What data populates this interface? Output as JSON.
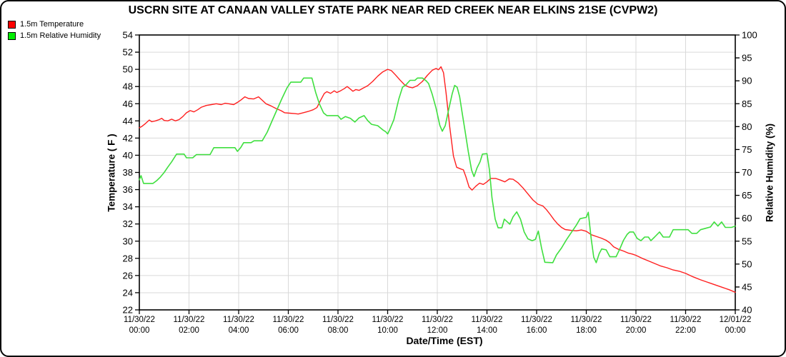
{
  "chart_data": {
    "type": "line",
    "title": "USCRN SITE AT CANAAN VALLEY STATE PARK NEAR RED CREEK NEAR ELKINS 21SE (CVPW2)",
    "xlabel": "Date/Time (EST)",
    "ylabel_left": "Temperature ( F )",
    "ylabel_right": "Relative Humidity (%)",
    "grid": true,
    "legend_position": "top-left",
    "colors": {
      "temperature_line": "#ff1f1f",
      "humidity_line": "#3fdf3f",
      "temperature_swatch": "#ff0000",
      "humidity_swatch": "#00ee00",
      "gridline": "#d9d9d9",
      "axis": "#000000"
    },
    "legend": [
      {
        "label": "1.5m Temperature",
        "color": "#ff0000"
      },
      {
        "label": "1.5m Relative Humidity",
        "color": "#00ee00"
      }
    ],
    "x_range_hours": [
      0,
      24
    ],
    "y_left_axis": {
      "min": 22,
      "max": 54,
      "step": 2
    },
    "y_right_axis": {
      "min": 40,
      "max": 100,
      "step": 5
    },
    "x_ticks": [
      {
        "date": "11/30/22",
        "time": "00:00"
      },
      {
        "date": "11/30/22",
        "time": "02:00"
      },
      {
        "date": "11/30/22",
        "time": "04:00"
      },
      {
        "date": "11/30/22",
        "time": "06:00"
      },
      {
        "date": "11/30/22",
        "time": "08:00"
      },
      {
        "date": "11/30/22",
        "time": "10:00"
      },
      {
        "date": "11/30/22",
        "time": "12:00"
      },
      {
        "date": "11/30/22",
        "time": "14:00"
      },
      {
        "date": "11/30/22",
        "time": "16:00"
      },
      {
        "date": "11/30/22",
        "time": "18:00"
      },
      {
        "date": "11/30/22",
        "time": "20:00"
      },
      {
        "date": "11/30/22",
        "time": "22:00"
      },
      {
        "date": "12/01/22",
        "time": "00:00"
      }
    ],
    "series": [
      {
        "name": "1.5m Temperature",
        "axis": "left",
        "units": "F",
        "points": [
          [
            0,
            43.2
          ],
          [
            0.1,
            43.35
          ],
          [
            0.25,
            43.7
          ],
          [
            0.4,
            44.1
          ],
          [
            0.5,
            43.9
          ],
          [
            0.65,
            44.0
          ],
          [
            0.8,
            44.15
          ],
          [
            0.9,
            44.3
          ],
          [
            1.0,
            44.05
          ],
          [
            1.15,
            44.0
          ],
          [
            1.3,
            44.2
          ],
          [
            1.45,
            44.0
          ],
          [
            1.6,
            44.15
          ],
          [
            1.75,
            44.5
          ],
          [
            1.9,
            44.95
          ],
          [
            2.05,
            45.2
          ],
          [
            2.2,
            45.05
          ],
          [
            2.35,
            45.3
          ],
          [
            2.5,
            45.6
          ],
          [
            2.7,
            45.8
          ],
          [
            2.9,
            45.9
          ],
          [
            3.1,
            46.0
          ],
          [
            3.3,
            45.9
          ],
          [
            3.45,
            46.05
          ],
          [
            3.6,
            46.0
          ],
          [
            3.8,
            45.9
          ],
          [
            3.95,
            46.15
          ],
          [
            4.1,
            46.45
          ],
          [
            4.25,
            46.8
          ],
          [
            4.4,
            46.6
          ],
          [
            4.6,
            46.55
          ],
          [
            4.8,
            46.8
          ],
          [
            4.95,
            46.4
          ],
          [
            5.1,
            46.0
          ],
          [
            5.3,
            45.75
          ],
          [
            5.5,
            45.45
          ],
          [
            5.7,
            45.2
          ],
          [
            5.85,
            44.95
          ],
          [
            6.05,
            44.9
          ],
          [
            6.25,
            44.85
          ],
          [
            6.4,
            44.8
          ],
          [
            6.6,
            44.95
          ],
          [
            6.8,
            45.1
          ],
          [
            7.0,
            45.3
          ],
          [
            7.15,
            45.55
          ],
          [
            7.3,
            46.4
          ],
          [
            7.45,
            47.2
          ],
          [
            7.55,
            47.4
          ],
          [
            7.7,
            47.2
          ],
          [
            7.85,
            47.5
          ],
          [
            7.95,
            47.3
          ],
          [
            8.1,
            47.5
          ],
          [
            8.25,
            47.75
          ],
          [
            8.37,
            48.0
          ],
          [
            8.5,
            47.7
          ],
          [
            8.6,
            47.45
          ],
          [
            8.72,
            47.65
          ],
          [
            8.85,
            47.55
          ],
          [
            9.0,
            47.8
          ],
          [
            9.2,
            48.1
          ],
          [
            9.4,
            48.6
          ],
          [
            9.6,
            49.2
          ],
          [
            9.8,
            49.7
          ],
          [
            10.0,
            50.0
          ],
          [
            10.15,
            49.85
          ],
          [
            10.3,
            49.4
          ],
          [
            10.5,
            48.75
          ],
          [
            10.7,
            48.15
          ],
          [
            10.85,
            47.95
          ],
          [
            11.0,
            47.85
          ],
          [
            11.2,
            48.1
          ],
          [
            11.4,
            48.6
          ],
          [
            11.6,
            49.3
          ],
          [
            11.8,
            49.9
          ],
          [
            11.95,
            50.1
          ],
          [
            12.05,
            49.95
          ],
          [
            12.15,
            50.3
          ],
          [
            12.25,
            49.6
          ],
          [
            12.35,
            47.3
          ],
          [
            12.5,
            43.3
          ],
          [
            12.65,
            39.9
          ],
          [
            12.78,
            38.6
          ],
          [
            12.95,
            38.4
          ],
          [
            13.05,
            38.3
          ],
          [
            13.15,
            37.5
          ],
          [
            13.28,
            36.3
          ],
          [
            13.4,
            35.95
          ],
          [
            13.55,
            36.4
          ],
          [
            13.7,
            36.75
          ],
          [
            13.85,
            36.6
          ],
          [
            14.0,
            36.9
          ],
          [
            14.15,
            37.3
          ],
          [
            14.35,
            37.3
          ],
          [
            14.55,
            37.1
          ],
          [
            14.72,
            36.9
          ],
          [
            14.9,
            37.25
          ],
          [
            15.05,
            37.2
          ],
          [
            15.25,
            36.8
          ],
          [
            15.45,
            36.2
          ],
          [
            15.65,
            35.5
          ],
          [
            15.85,
            34.8
          ],
          [
            16.05,
            34.3
          ],
          [
            16.25,
            34.1
          ],
          [
            16.4,
            33.65
          ],
          [
            16.55,
            33.1
          ],
          [
            16.7,
            32.5
          ],
          [
            16.85,
            32.0
          ],
          [
            17.0,
            31.6
          ],
          [
            17.15,
            31.35
          ],
          [
            17.4,
            31.25
          ],
          [
            17.6,
            31.2
          ],
          [
            17.8,
            31.3
          ],
          [
            18.0,
            31.15
          ],
          [
            18.2,
            30.75
          ],
          [
            18.4,
            30.55
          ],
          [
            18.6,
            30.35
          ],
          [
            18.8,
            30.1
          ],
          [
            18.95,
            29.8
          ],
          [
            19.1,
            29.35
          ],
          [
            19.3,
            29.05
          ],
          [
            19.5,
            28.85
          ],
          [
            19.7,
            28.6
          ],
          [
            19.85,
            28.5
          ],
          [
            20.0,
            28.35
          ],
          [
            20.25,
            28.0
          ],
          [
            20.5,
            27.7
          ],
          [
            20.75,
            27.4
          ],
          [
            21.0,
            27.1
          ],
          [
            21.25,
            26.9
          ],
          [
            21.5,
            26.65
          ],
          [
            21.75,
            26.5
          ],
          [
            22.0,
            26.25
          ],
          [
            22.3,
            25.85
          ],
          [
            22.6,
            25.5
          ],
          [
            22.85,
            25.25
          ],
          [
            23.0,
            25.1
          ],
          [
            23.25,
            24.85
          ],
          [
            23.5,
            24.6
          ],
          [
            23.75,
            24.35
          ],
          [
            24.0,
            24.05
          ]
        ]
      },
      {
        "name": "1.5m Relative Humidity",
        "axis": "right",
        "units": "%",
        "points": [
          [
            0,
            68.4
          ],
          [
            0.07,
            69.3
          ],
          [
            0.17,
            67.6
          ],
          [
            0.55,
            67.6
          ],
          [
            0.7,
            68.2
          ],
          [
            0.85,
            69.0
          ],
          [
            1.0,
            70.0
          ],
          [
            1.15,
            71.2
          ],
          [
            1.3,
            72.3
          ],
          [
            1.5,
            74.0
          ],
          [
            1.8,
            74.0
          ],
          [
            1.9,
            73.2
          ],
          [
            2.15,
            73.2
          ],
          [
            2.3,
            73.9
          ],
          [
            2.85,
            73.9
          ],
          [
            3.0,
            75.4
          ],
          [
            3.85,
            75.4
          ],
          [
            3.95,
            74.6
          ],
          [
            4.08,
            75.4
          ],
          [
            4.2,
            76.5
          ],
          [
            4.5,
            76.5
          ],
          [
            4.62,
            76.9
          ],
          [
            4.95,
            76.9
          ],
          [
            5.15,
            78.8
          ],
          [
            5.35,
            81.3
          ],
          [
            5.55,
            83.8
          ],
          [
            5.75,
            86.2
          ],
          [
            5.95,
            88.5
          ],
          [
            6.1,
            89.7
          ],
          [
            6.5,
            89.7
          ],
          [
            6.62,
            90.6
          ],
          [
            6.95,
            90.6
          ],
          [
            7.1,
            87.5
          ],
          [
            7.25,
            85.0
          ],
          [
            7.42,
            83.0
          ],
          [
            7.55,
            82.4
          ],
          [
            8.0,
            82.4
          ],
          [
            8.12,
            81.6
          ],
          [
            8.3,
            82.2
          ],
          [
            8.5,
            81.8
          ],
          [
            8.68,
            81.0
          ],
          [
            8.85,
            81.9
          ],
          [
            9.05,
            82.4
          ],
          [
            9.2,
            81.3
          ],
          [
            9.35,
            80.5
          ],
          [
            9.6,
            80.2
          ],
          [
            9.8,
            79.3
          ],
          [
            9.92,
            78.9
          ],
          [
            10.0,
            78.4
          ],
          [
            10.08,
            79.3
          ],
          [
            10.25,
            81.5
          ],
          [
            10.45,
            86.0
          ],
          [
            10.6,
            88.6
          ],
          [
            10.75,
            89.2
          ],
          [
            10.9,
            90.1
          ],
          [
            11.1,
            90.1
          ],
          [
            11.2,
            90.6
          ],
          [
            11.4,
            90.6
          ],
          [
            11.55,
            90.0
          ],
          [
            11.65,
            89.4
          ],
          [
            11.8,
            87.0
          ],
          [
            11.95,
            84.0
          ],
          [
            12.1,
            80.3
          ],
          [
            12.2,
            79.0
          ],
          [
            12.32,
            80.2
          ],
          [
            12.45,
            83.5
          ],
          [
            12.6,
            87.2
          ],
          [
            12.7,
            89.0
          ],
          [
            12.8,
            88.6
          ],
          [
            12.9,
            86.5
          ],
          [
            13.0,
            83.0
          ],
          [
            13.12,
            79.0
          ],
          [
            13.25,
            74.5
          ],
          [
            13.38,
            70.5
          ],
          [
            13.48,
            69.1
          ],
          [
            13.6,
            71.0
          ],
          [
            13.72,
            72.3
          ],
          [
            13.82,
            74.0
          ],
          [
            14.0,
            74.1
          ],
          [
            14.1,
            70.5
          ],
          [
            14.2,
            64.5
          ],
          [
            14.33,
            59.8
          ],
          [
            14.45,
            57.9
          ],
          [
            14.6,
            57.9
          ],
          [
            14.7,
            59.8
          ],
          [
            14.82,
            59.2
          ],
          [
            14.92,
            58.7
          ],
          [
            15.05,
            60.3
          ],
          [
            15.2,
            61.4
          ],
          [
            15.35,
            59.8
          ],
          [
            15.5,
            57.0
          ],
          [
            15.65,
            55.5
          ],
          [
            15.82,
            55.1
          ],
          [
            15.95,
            55.4
          ],
          [
            16.07,
            57.2
          ],
          [
            16.2,
            53.5
          ],
          [
            16.33,
            50.4
          ],
          [
            16.65,
            50.3
          ],
          [
            16.8,
            52.0
          ],
          [
            17.0,
            53.5
          ],
          [
            17.2,
            55.3
          ],
          [
            17.4,
            56.9
          ],
          [
            17.6,
            58.5
          ],
          [
            17.75,
            59.9
          ],
          [
            18.0,
            60.2
          ],
          [
            18.08,
            61.3
          ],
          [
            18.2,
            55.5
          ],
          [
            18.3,
            51.5
          ],
          [
            18.4,
            50.3
          ],
          [
            18.52,
            52.3
          ],
          [
            18.62,
            53.3
          ],
          [
            18.8,
            53.1
          ],
          [
            18.95,
            51.6
          ],
          [
            19.2,
            51.6
          ],
          [
            19.35,
            53.3
          ],
          [
            19.5,
            55.2
          ],
          [
            19.65,
            56.5
          ],
          [
            19.75,
            57.0
          ],
          [
            19.9,
            57.0
          ],
          [
            20.05,
            55.6
          ],
          [
            20.2,
            55.1
          ],
          [
            20.35,
            55.9
          ],
          [
            20.5,
            55.9
          ],
          [
            20.6,
            55.1
          ],
          [
            20.75,
            55.9
          ],
          [
            20.95,
            57.0
          ],
          [
            21.1,
            55.9
          ],
          [
            21.35,
            55.9
          ],
          [
            21.5,
            57.5
          ],
          [
            22.1,
            57.5
          ],
          [
            22.25,
            56.7
          ],
          [
            22.45,
            56.7
          ],
          [
            22.6,
            57.5
          ],
          [
            22.8,
            57.8
          ],
          [
            23.0,
            58.1
          ],
          [
            23.15,
            59.2
          ],
          [
            23.3,
            58.3
          ],
          [
            23.45,
            59.2
          ],
          [
            23.6,
            58.0
          ],
          [
            23.85,
            58.0
          ],
          [
            24.0,
            58.3
          ]
        ]
      }
    ]
  }
}
